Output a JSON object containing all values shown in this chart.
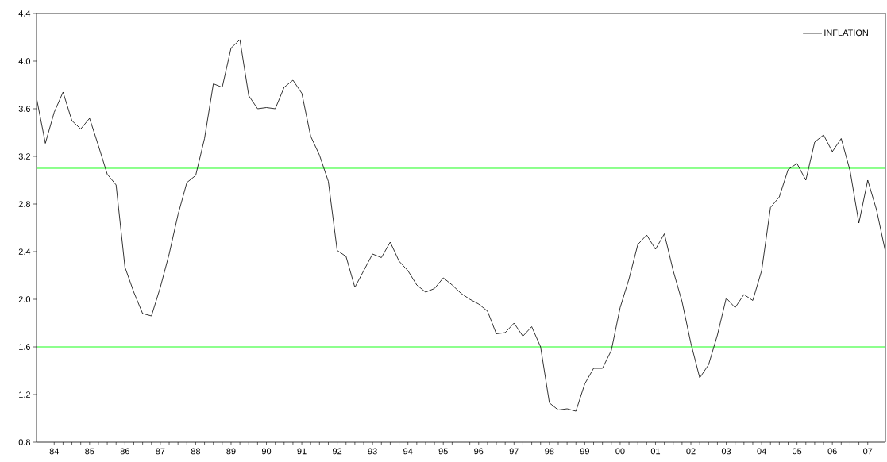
{
  "chart_data": {
    "type": "line",
    "x": [
      1983.5,
      1983.75,
      1984,
      1984.25,
      1984.5,
      1984.75,
      1985,
      1985.25,
      1985.5,
      1985.75,
      1986,
      1986.25,
      1986.5,
      1986.75,
      1987,
      1987.25,
      1987.5,
      1987.75,
      1988,
      1988.25,
      1988.5,
      1988.75,
      1989,
      1989.25,
      1989.5,
      1989.75,
      1990,
      1990.25,
      1990.5,
      1990.75,
      1991,
      1991.25,
      1991.5,
      1991.75,
      1992,
      1992.25,
      1992.5,
      1992.75,
      1993,
      1993.25,
      1993.5,
      1993.75,
      1994,
      1994.25,
      1994.5,
      1994.75,
      1995,
      1995.25,
      1995.5,
      1995.75,
      1996,
      1996.25,
      1996.5,
      1996.75,
      1997,
      1997.25,
      1997.5,
      1997.75,
      1998,
      1998.25,
      1998.5,
      1998.75,
      1999,
      1999.25,
      1999.5,
      1999.75,
      2000,
      2000.25,
      2000.5,
      2000.75,
      2001,
      2001.25,
      2001.5,
      2001.75,
      2002,
      2002.25,
      2002.5,
      2002.75,
      2003,
      2003.25,
      2003.5,
      2003.75,
      2004,
      2004.25,
      2004.5,
      2004.75,
      2005,
      2005.25,
      2005.5,
      2005.75,
      2006,
      2006.25,
      2006.5,
      2006.75,
      2007,
      2007.25,
      2007.5
    ],
    "series": [
      {
        "name": "INFLATION",
        "color": "#000000",
        "values": [
          3.69,
          3.31,
          3.57,
          3.74,
          3.5,
          3.43,
          3.52,
          3.29,
          3.05,
          2.96,
          2.27,
          2.06,
          1.88,
          1.86,
          2.1,
          2.38,
          2.71,
          2.98,
          3.04,
          3.35,
          3.81,
          3.78,
          4.11,
          4.18,
          3.71,
          3.6,
          3.61,
          3.6,
          3.78,
          3.84,
          3.73,
          3.37,
          3.21,
          2.99,
          2.41,
          2.36,
          2.1,
          2.24,
          2.38,
          2.35,
          2.48,
          2.32,
          2.24,
          2.12,
          2.06,
          2.09,
          2.18,
          2.12,
          2.05,
          2.0,
          1.96,
          1.9,
          1.71,
          1.72,
          1.8,
          1.69,
          1.77,
          1.6,
          1.13,
          1.07,
          1.08,
          1.06,
          1.29,
          1.42,
          1.42,
          1.57,
          1.93,
          2.17,
          2.46,
          2.54,
          2.42,
          2.55,
          2.24,
          1.98,
          1.63,
          1.34,
          1.45,
          1.7,
          2.01,
          1.93,
          2.04,
          1.99,
          2.24,
          2.77,
          2.86,
          3.09,
          3.14,
          3.0,
          3.32,
          3.38,
          3.24,
          3.35,
          3.08,
          2.64,
          3.0,
          2.75,
          2.4
        ]
      }
    ],
    "xlim": [
      1983.5,
      2007.5
    ],
    "xticks": [
      {
        "value": 1984,
        "label": "84"
      },
      {
        "value": 1985,
        "label": "85"
      },
      {
        "value": 1986,
        "label": "86"
      },
      {
        "value": 1987,
        "label": "87"
      },
      {
        "value": 1988,
        "label": "88"
      },
      {
        "value": 1989,
        "label": "89"
      },
      {
        "value": 1990,
        "label": "90"
      },
      {
        "value": 1991,
        "label": "91"
      },
      {
        "value": 1992,
        "label": "92"
      },
      {
        "value": 1993,
        "label": "93"
      },
      {
        "value": 1994,
        "label": "94"
      },
      {
        "value": 1995,
        "label": "95"
      },
      {
        "value": 1996,
        "label": "96"
      },
      {
        "value": 1997,
        "label": "97"
      },
      {
        "value": 1998,
        "label": "98"
      },
      {
        "value": 1999,
        "label": "99"
      },
      {
        "value": 2000,
        "label": "00"
      },
      {
        "value": 2001,
        "label": "01"
      },
      {
        "value": 2002,
        "label": "02"
      },
      {
        "value": 2003,
        "label": "03"
      },
      {
        "value": 2004,
        "label": "04"
      },
      {
        "value": 2005,
        "label": "05"
      },
      {
        "value": 2006,
        "label": "06"
      },
      {
        "value": 2007,
        "label": "07"
      }
    ],
    "ylim": [
      0.8,
      4.4
    ],
    "yticks": [
      {
        "value": 0.8,
        "label": "0.8"
      },
      {
        "value": 1.2,
        "label": "1.2"
      },
      {
        "value": 1.6,
        "label": "1.6"
      },
      {
        "value": 2.0,
        "label": "2.0"
      },
      {
        "value": 2.4,
        "label": "2.4"
      },
      {
        "value": 2.8,
        "label": "2.8"
      },
      {
        "value": 3.2,
        "label": "3.2"
      },
      {
        "value": 3.6,
        "label": "3.6"
      },
      {
        "value": 4.0,
        "label": "4.0"
      },
      {
        "value": 4.4,
        "label": "4.4"
      }
    ],
    "ref_lines": [
      {
        "axis": "y",
        "value": 3.1,
        "color": "#00ff00"
      },
      {
        "axis": "y",
        "value": 1.6,
        "color": "#00ff00"
      }
    ],
    "legend": "top right"
  }
}
